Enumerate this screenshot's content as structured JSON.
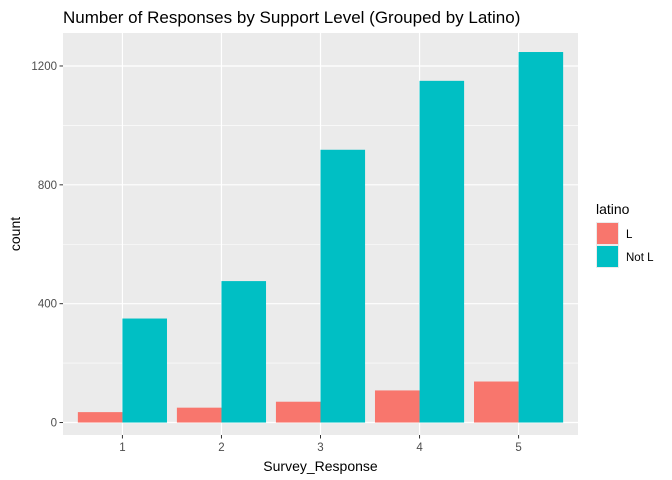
{
  "chart_data": {
    "type": "bar",
    "title": "Number of Responses by Support Level (Grouped by Latino)",
    "xlabel": "Survey_Response",
    "ylabel": "count",
    "categories": [
      "1",
      "2",
      "3",
      "4",
      "5"
    ],
    "series": [
      {
        "name": "L",
        "color": "#F8766D",
        "values": [
          35,
          50,
          70,
          108,
          138
        ]
      },
      {
        "name": "Not L",
        "color": "#00BFC4",
        "values": [
          350,
          476,
          918,
          1150,
          1247
        ]
      }
    ],
    "yticks": [
      0,
      400,
      800,
      1200
    ],
    "ytick_labels": [
      "0",
      "400",
      "800",
      "1200"
    ],
    "ylim": [
      -42,
      1311
    ],
    "legend": {
      "title": "latino",
      "position": "right"
    },
    "panel_background": "#EBEBEB",
    "grid_color": "#FFFFFF",
    "grid": true
  }
}
